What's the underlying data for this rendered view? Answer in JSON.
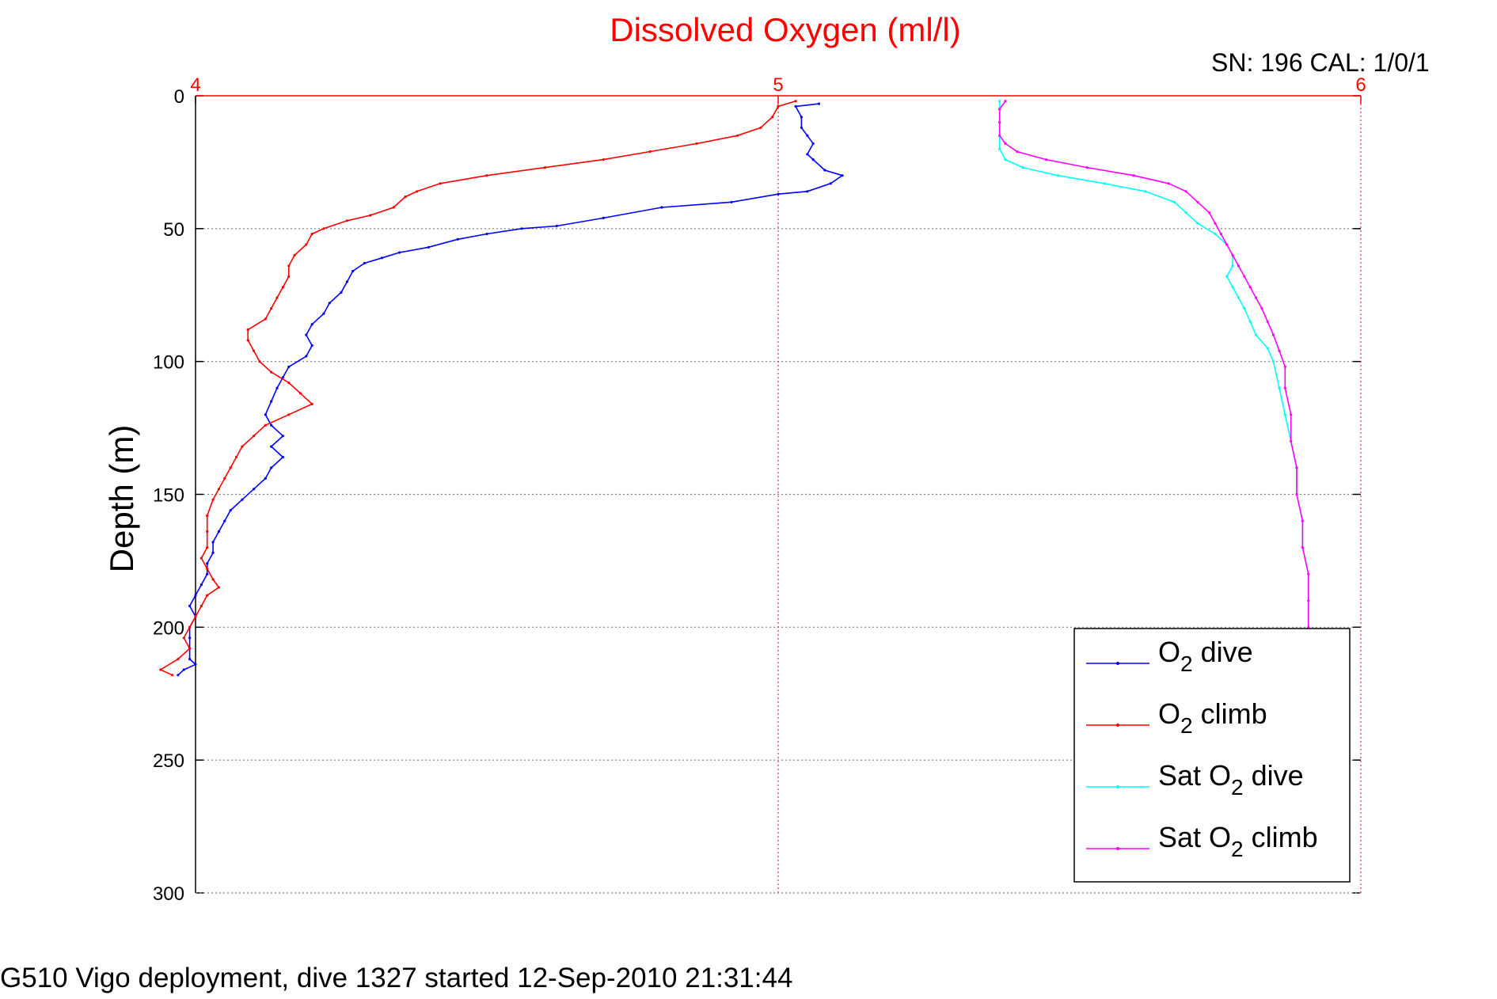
{
  "chart_data": {
    "type": "line",
    "title": "Dissolved Oxygen (ml/l)",
    "info_label": "SN: 196  CAL: 1/0/1",
    "ylabel": "Depth (m)",
    "xlabel": "",
    "footer": "G510 Vigo deployment, dive 1327 started 12-Sep-2010 21:31:44",
    "xlim": [
      4,
      6
    ],
    "ylim": [
      0,
      300
    ],
    "y_reversed": true,
    "x_axis_position": "top",
    "x_ticks": [
      "4",
      "5",
      "6"
    ],
    "y_ticks": [
      "0",
      "50",
      "100",
      "150",
      "200",
      "250",
      "300"
    ],
    "grid": true,
    "legend_position": "bottom-right",
    "title_color": "#ff0000",
    "x_tick_color": "#ff0000",
    "series": [
      {
        "name": "O2 dive",
        "legend_label": "O2 dive",
        "color": "#0000ff",
        "points": [
          [
            5.07,
            3
          ],
          [
            5.03,
            4
          ],
          [
            5.04,
            8
          ],
          [
            5.04,
            12
          ],
          [
            5.05,
            15
          ],
          [
            5.06,
            18
          ],
          [
            5.05,
            22
          ],
          [
            5.06,
            24
          ],
          [
            5.08,
            28
          ],
          [
            5.11,
            30
          ],
          [
            5.09,
            33
          ],
          [
            5.05,
            36
          ],
          [
            5.0,
            37
          ],
          [
            4.92,
            40
          ],
          [
            4.8,
            42
          ],
          [
            4.7,
            46
          ],
          [
            4.62,
            49
          ],
          [
            4.56,
            50
          ],
          [
            4.5,
            52
          ],
          [
            4.45,
            54
          ],
          [
            4.4,
            57
          ],
          [
            4.35,
            59
          ],
          [
            4.32,
            61
          ],
          [
            4.29,
            63
          ],
          [
            4.27,
            66
          ],
          [
            4.26,
            70
          ],
          [
            4.25,
            74
          ],
          [
            4.23,
            78
          ],
          [
            4.22,
            82
          ],
          [
            4.2,
            86
          ],
          [
            4.19,
            90
          ],
          [
            4.2,
            94
          ],
          [
            4.19,
            98
          ],
          [
            4.16,
            102
          ],
          [
            4.15,
            106
          ],
          [
            4.14,
            110
          ],
          [
            4.13,
            115
          ],
          [
            4.12,
            120
          ],
          [
            4.13,
            124
          ],
          [
            4.15,
            128
          ],
          [
            4.13,
            132
          ],
          [
            4.15,
            136
          ],
          [
            4.13,
            140
          ],
          [
            4.12,
            144
          ],
          [
            4.1,
            148
          ],
          [
            4.08,
            152
          ],
          [
            4.06,
            156
          ],
          [
            4.05,
            160
          ],
          [
            4.04,
            164
          ],
          [
            4.03,
            168
          ],
          [
            4.03,
            172
          ],
          [
            4.02,
            176
          ],
          [
            4.02,
            180
          ],
          [
            4.01,
            184
          ],
          [
            4.0,
            188
          ],
          [
            3.99,
            192
          ],
          [
            4.0,
            196
          ],
          [
            3.99,
            200
          ],
          [
            3.99,
            204
          ],
          [
            3.99,
            208
          ],
          [
            3.99,
            212
          ],
          [
            4.0,
            214
          ],
          [
            3.98,
            216
          ],
          [
            3.97,
            218
          ]
        ]
      },
      {
        "name": "O2 climb",
        "legend_label": "O2 climb",
        "color": "#ff0000",
        "points": [
          [
            5.03,
            2
          ],
          [
            5.0,
            4
          ],
          [
            4.99,
            8
          ],
          [
            4.97,
            12
          ],
          [
            4.93,
            15
          ],
          [
            4.86,
            18
          ],
          [
            4.78,
            21
          ],
          [
            4.7,
            24
          ],
          [
            4.6,
            27
          ],
          [
            4.5,
            30
          ],
          [
            4.42,
            33
          ],
          [
            4.38,
            36
          ],
          [
            4.36,
            38
          ],
          [
            4.34,
            42
          ],
          [
            4.3,
            45
          ],
          [
            4.26,
            47
          ],
          [
            4.22,
            50
          ],
          [
            4.2,
            52
          ],
          [
            4.19,
            56
          ],
          [
            4.17,
            60
          ],
          [
            4.16,
            64
          ],
          [
            4.16,
            68
          ],
          [
            4.15,
            72
          ],
          [
            4.14,
            76
          ],
          [
            4.13,
            80
          ],
          [
            4.12,
            84
          ],
          [
            4.09,
            88
          ],
          [
            4.09,
            92
          ],
          [
            4.1,
            96
          ],
          [
            4.11,
            100
          ],
          [
            4.13,
            104
          ],
          [
            4.16,
            108
          ],
          [
            4.18,
            112
          ],
          [
            4.2,
            116
          ],
          [
            4.16,
            120
          ],
          [
            4.12,
            124
          ],
          [
            4.1,
            128
          ],
          [
            4.08,
            132
          ],
          [
            4.07,
            136
          ],
          [
            4.06,
            140
          ],
          [
            4.05,
            144
          ],
          [
            4.04,
            148
          ],
          [
            4.03,
            152
          ],
          [
            4.02,
            158
          ],
          [
            4.02,
            164
          ],
          [
            4.02,
            170
          ],
          [
            4.01,
            174
          ],
          [
            4.02,
            178
          ],
          [
            4.03,
            182
          ],
          [
            4.04,
            185
          ],
          [
            4.02,
            188
          ],
          [
            4.01,
            192
          ],
          [
            4.0,
            196
          ],
          [
            3.99,
            200
          ],
          [
            3.98,
            204
          ],
          [
            3.99,
            208
          ],
          [
            3.97,
            212
          ],
          [
            3.94,
            216
          ],
          [
            3.96,
            218
          ]
        ]
      },
      {
        "name": "Sat O2 dive",
        "legend_label": "Sat O2 dive",
        "color": "#00ffff",
        "points": [
          [
            5.38,
            2
          ],
          [
            5.38,
            5
          ],
          [
            5.38,
            10
          ],
          [
            5.38,
            15
          ],
          [
            5.38,
            20
          ],
          [
            5.39,
            24
          ],
          [
            5.42,
            27
          ],
          [
            5.48,
            30
          ],
          [
            5.56,
            33
          ],
          [
            5.63,
            36
          ],
          [
            5.68,
            40
          ],
          [
            5.7,
            44
          ],
          [
            5.72,
            48
          ],
          [
            5.75,
            52
          ],
          [
            5.77,
            56
          ],
          [
            5.78,
            60
          ],
          [
            5.78,
            64
          ],
          [
            5.77,
            68
          ],
          [
            5.78,
            72
          ],
          [
            5.79,
            76
          ],
          [
            5.8,
            80
          ],
          [
            5.81,
            85
          ],
          [
            5.82,
            90
          ],
          [
            5.84,
            95
          ],
          [
            5.85,
            100
          ],
          [
            5.86,
            110
          ],
          [
            5.87,
            120
          ],
          [
            5.88,
            130
          ],
          [
            5.89,
            140
          ],
          [
            5.89,
            150
          ],
          [
            5.9,
            160
          ],
          [
            5.9,
            170
          ],
          [
            5.91,
            180
          ],
          [
            5.91,
            190
          ],
          [
            5.91,
            200
          ]
        ]
      },
      {
        "name": "Sat O2 climb",
        "legend_label": "Sat O2 climb",
        "color": "#ff00ff",
        "points": [
          [
            5.39,
            2
          ],
          [
            5.38,
            5
          ],
          [
            5.38,
            10
          ],
          [
            5.38,
            15
          ],
          [
            5.39,
            18
          ],
          [
            5.41,
            21
          ],
          [
            5.46,
            24
          ],
          [
            5.53,
            27
          ],
          [
            5.61,
            30
          ],
          [
            5.67,
            33
          ],
          [
            5.7,
            36
          ],
          [
            5.72,
            40
          ],
          [
            5.74,
            44
          ],
          [
            5.75,
            48
          ],
          [
            5.76,
            52
          ],
          [
            5.77,
            56
          ],
          [
            5.78,
            60
          ],
          [
            5.79,
            64
          ],
          [
            5.8,
            68
          ],
          [
            5.81,
            72
          ],
          [
            5.82,
            76
          ],
          [
            5.83,
            80
          ],
          [
            5.84,
            85
          ],
          [
            5.85,
            90
          ],
          [
            5.86,
            96
          ],
          [
            5.87,
            102
          ],
          [
            5.87,
            110
          ],
          [
            5.88,
            120
          ],
          [
            5.88,
            130
          ],
          [
            5.89,
            140
          ],
          [
            5.89,
            150
          ],
          [
            5.9,
            160
          ],
          [
            5.9,
            170
          ],
          [
            5.91,
            180
          ],
          [
            5.91,
            190
          ],
          [
            5.91,
            200
          ]
        ]
      }
    ]
  }
}
